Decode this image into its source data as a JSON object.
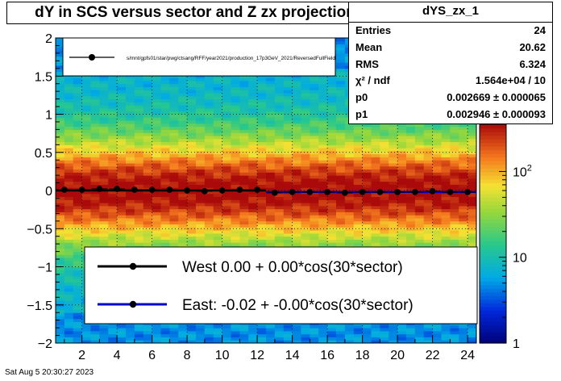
{
  "title": "dY in SCS versus sector and Z zx projection",
  "stats": {
    "name": "dYS_zx_1",
    "rows": [
      {
        "label": "Entries",
        "value": "24"
      },
      {
        "label": "Mean",
        "value": "20.62"
      },
      {
        "label": "RMS",
        "value": "6.324"
      },
      {
        "label": "χ² / ndf",
        "value": "1.564e+04 / 10"
      },
      {
        "label": "p0",
        "value": "0.002669 ± 0.000065"
      },
      {
        "label": "p1",
        "value": "0.002946 ± 0.000093"
      }
    ]
  },
  "timestamp": "Sat Aug  5 20:30:27 2023",
  "chart_data": {
    "type": "heatmap",
    "x_range": [
      0.5,
      24.5
    ],
    "y_range": [
      -2,
      2
    ],
    "x_ticks": [
      "2",
      "4",
      "6",
      "8",
      "10",
      "12",
      "14",
      "16",
      "18",
      "20",
      "22",
      "24"
    ],
    "y_ticks": [
      "2",
      "1.5",
      "1",
      "0.5",
      "0",
      "−0.5",
      "−1",
      "−1.5",
      "−2"
    ],
    "z_scale": "log",
    "z_ticks": [
      "1",
      "10",
      "10²"
    ],
    "grid": true,
    "colors": {
      "west": "#000000",
      "east": "#0000cc"
    },
    "top_legend": {
      "text": "s/mnt/gpfs01/star/pwg/ctsang/RFF/year2021/production_17p3GeV_2021/ReversedFullField",
      "placement": "top-left"
    },
    "legend": {
      "placement": "bottom-center",
      "entries": [
        {
          "label": "West  0.00 +  0.00*cos(30*sector)",
          "color": "#000000"
        },
        {
          "label": "East: -0.02 + -0.00*cos(30*sector)",
          "color": "#0000cc"
        }
      ]
    },
    "series": [
      {
        "name": "West",
        "color": "#000000",
        "x": [
          1,
          2,
          3,
          4,
          5,
          6,
          7,
          8,
          9,
          10,
          11,
          12
        ],
        "y": [
          0.01,
          0.01,
          0.02,
          0.02,
          0.01,
          0.01,
          0.01,
          0.0,
          -0.01,
          0.0,
          0.01,
          0.01
        ]
      },
      {
        "name": "East",
        "color": "#0000cc",
        "x": [
          13,
          14,
          15,
          16,
          17,
          18,
          19,
          20,
          21,
          22,
          23,
          24
        ],
        "y": [
          -0.03,
          -0.02,
          -0.02,
          -0.02,
          -0.03,
          -0.02,
          -0.02,
          -0.02,
          -0.02,
          -0.01,
          -0.02,
          -0.02
        ]
      }
    ],
    "fits": [
      {
        "name": "West",
        "x": [
          0.5,
          12.5
        ],
        "y": 0.0
      },
      {
        "name": "East",
        "x": [
          12.5,
          24.5
        ],
        "y": -0.02
      }
    ]
  }
}
